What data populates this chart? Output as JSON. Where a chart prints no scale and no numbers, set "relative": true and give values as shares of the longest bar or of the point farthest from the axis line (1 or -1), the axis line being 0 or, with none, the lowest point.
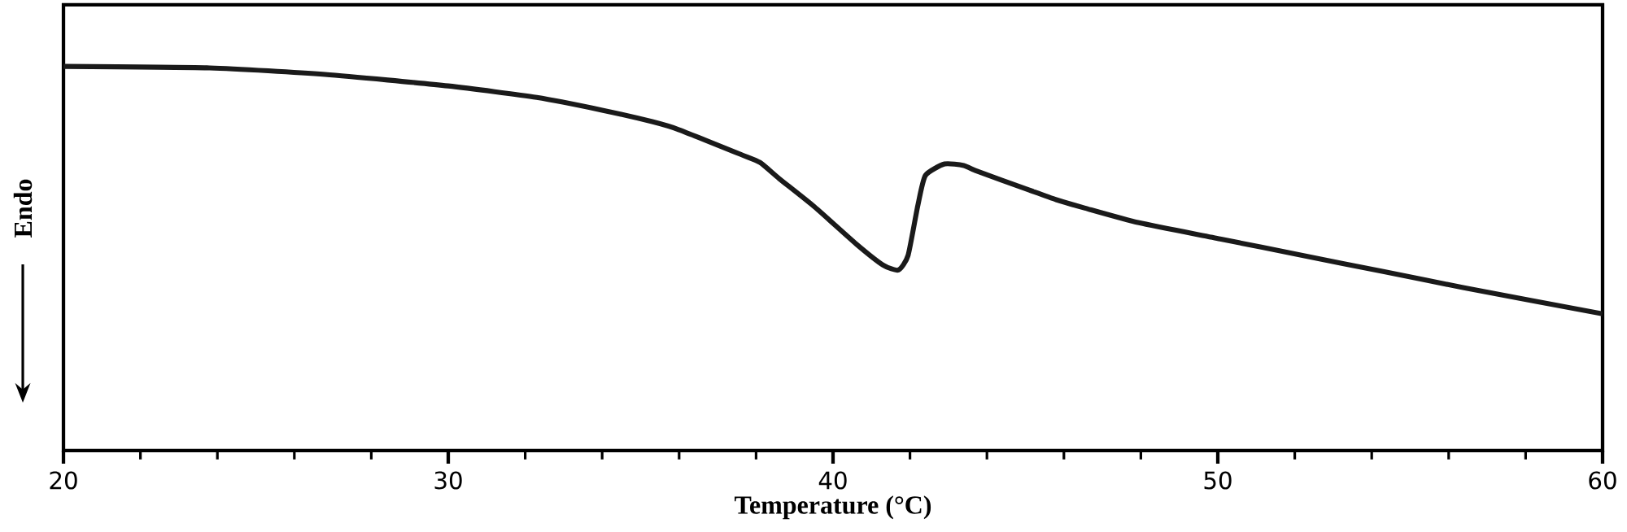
{
  "chart_data": {
    "type": "line",
    "relative": true,
    "xlabel": "Temperature (°C)",
    "ylabel": "Endo",
    "xlim": [
      20,
      60
    ],
    "xticks": [
      20,
      {
        "value": 22,
        "label": null
      },
      {
        "value": 24,
        "label": null
      },
      {
        "value": 26,
        "label": null
      },
      {
        "value": 28,
        "label": null
      },
      30,
      {
        "value": 32,
        "label": null
      },
      {
        "value": 34,
        "label": null
      },
      {
        "value": 36,
        "label": null
      },
      {
        "value": 38,
        "label": null
      },
      40,
      {
        "value": 42,
        "label": null
      },
      {
        "value": 44,
        "label": null
      },
      {
        "value": 46,
        "label": null
      },
      {
        "value": 48,
        "label": null
      },
      50,
      {
        "value": 52,
        "label": null
      },
      {
        "value": 54,
        "label": null
      },
      {
        "value": 56,
        "label": null
      },
      {
        "value": 58,
        "label": null
      },
      60
    ],
    "tick_labels": "x",
    "grid": false,
    "marker": "none",
    "line_style": "solid",
    "series": [
      {
        "color": "#1a1a1a",
        "x": [
          20,
          23.8,
          26.8,
          30,
          32.3,
          34,
          35.3,
          36,
          37.6,
          38.1,
          38.6,
          39.5,
          40.6,
          41.3,
          41.7,
          41.95,
          42.2,
          42.4,
          42.9,
          43.4,
          43.7,
          45.1,
          45.8,
          46.55,
          47.95,
          50.06,
          52.2,
          54.3,
          56.4,
          60
        ],
        "values": [
          1.0,
          0.996,
          0.979,
          0.949,
          0.919,
          0.886,
          0.856,
          0.835,
          0.771,
          0.75,
          0.708,
          0.636,
          0.538,
          0.483,
          0.47,
          0.508,
          0.636,
          0.716,
          0.746,
          0.742,
          0.729,
          0.678,
          0.653,
          0.631,
          0.593,
          0.551,
          0.508,
          0.466,
          0.424,
          0.356
        ]
      }
    ]
  }
}
